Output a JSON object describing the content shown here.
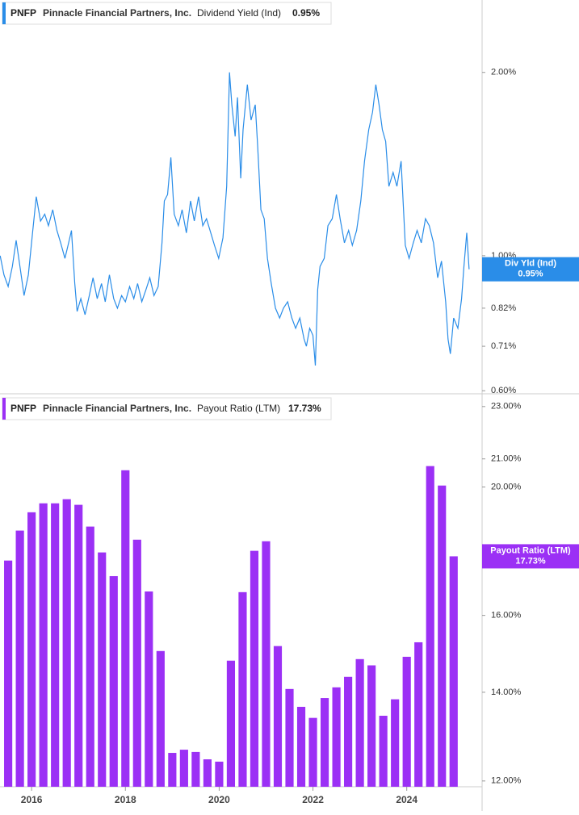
{
  "chart_data": [
    {
      "type": "line",
      "ticker": "PNFP",
      "company": "Pinnacle Financial Partners, Inc.",
      "metric": "Dividend Yield (Ind)",
      "last_label": "0.95%",
      "badge_label": "Div Yld (Ind)",
      "color": "#2a8de8",
      "log_scale": true,
      "xlim": [
        2015.326,
        2025.607
      ],
      "ylim": [
        0.595,
        2.63
      ],
      "yticks": [
        {
          "value": 2,
          "label": "2.00%"
        },
        {
          "value": 1,
          "label": "1.00%"
        },
        {
          "value": 0.82,
          "label": "0.82%"
        },
        {
          "value": 0.71,
          "label": "0.71%"
        },
        {
          "value": 0.6,
          "label": "0.60%"
        }
      ],
      "x": [
        2015.33,
        2015.41,
        2015.5,
        2015.59,
        2015.67,
        2015.76,
        2015.84,
        2015.93,
        2016.02,
        2016.1,
        2016.19,
        2016.28,
        2016.36,
        2016.45,
        2016.54,
        2016.62,
        2016.71,
        2016.79,
        2016.85,
        2016.92,
        2016.97,
        2017.05,
        2017.14,
        2017.23,
        2017.31,
        2017.4,
        2017.49,
        2017.57,
        2017.66,
        2017.75,
        2017.83,
        2017.92,
        2018.0,
        2018.09,
        2018.18,
        2018.26,
        2018.35,
        2018.44,
        2018.52,
        2018.61,
        2018.7,
        2018.78,
        2018.83,
        2018.9,
        2018.97,
        2019.04,
        2019.13,
        2019.21,
        2019.3,
        2019.39,
        2019.47,
        2019.56,
        2019.65,
        2019.73,
        2019.82,
        2019.9,
        2019.99,
        2020.08,
        2020.16,
        2020.22,
        2020.27,
        2020.34,
        2020.39,
        2020.46,
        2020.51,
        2020.6,
        2020.68,
        2020.77,
        2020.82,
        2020.89,
        2020.96,
        2021.03,
        2021.11,
        2021.2,
        2021.29,
        2021.37,
        2021.46,
        2021.55,
        2021.63,
        2021.72,
        2021.81,
        2021.86,
        2021.93,
        2022.0,
        2022.05,
        2022.1,
        2022.15,
        2022.24,
        2022.32,
        2022.41,
        2022.5,
        2022.58,
        2022.67,
        2022.76,
        2022.84,
        2022.93,
        2023.02,
        2023.1,
        2023.19,
        2023.27,
        2023.34,
        2023.41,
        2023.48,
        2023.55,
        2023.62,
        2023.71,
        2023.79,
        2023.88,
        2023.97,
        2024.05,
        2024.14,
        2024.22,
        2024.31,
        2024.4,
        2024.48,
        2024.57,
        2024.66,
        2024.74,
        2024.83,
        2024.88,
        2024.93,
        2025.0,
        2025.09,
        2025.17,
        2025.22,
        2025.28,
        2025.33
      ],
      "values": [
        1.0,
        0.93,
        0.89,
        0.96,
        1.06,
        0.95,
        0.86,
        0.93,
        1.09,
        1.25,
        1.14,
        1.17,
        1.12,
        1.19,
        1.1,
        1.05,
        0.99,
        1.05,
        1.1,
        0.9,
        0.81,
        0.85,
        0.8,
        0.86,
        0.92,
        0.85,
        0.9,
        0.84,
        0.93,
        0.85,
        0.82,
        0.86,
        0.84,
        0.89,
        0.85,
        0.9,
        0.84,
        0.88,
        0.92,
        0.86,
        0.89,
        1.05,
        1.23,
        1.26,
        1.45,
        1.17,
        1.12,
        1.19,
        1.09,
        1.23,
        1.14,
        1.25,
        1.12,
        1.15,
        1.09,
        1.04,
        0.99,
        1.07,
        1.3,
        2.0,
        1.77,
        1.57,
        1.82,
        1.34,
        1.61,
        1.91,
        1.67,
        1.77,
        1.52,
        1.19,
        1.15,
        0.99,
        0.9,
        0.82,
        0.79,
        0.82,
        0.84,
        0.79,
        0.76,
        0.79,
        0.73,
        0.71,
        0.76,
        0.74,
        0.66,
        0.88,
        0.96,
        0.99,
        1.12,
        1.15,
        1.26,
        1.15,
        1.05,
        1.1,
        1.04,
        1.1,
        1.23,
        1.43,
        1.61,
        1.72,
        1.91,
        1.77,
        1.61,
        1.54,
        1.3,
        1.37,
        1.3,
        1.43,
        1.04,
        0.99,
        1.05,
        1.1,
        1.05,
        1.15,
        1.12,
        1.05,
        0.92,
        0.98,
        0.84,
        0.73,
        0.69,
        0.79,
        0.76,
        0.85,
        0.96,
        1.09,
        0.95
      ]
    },
    {
      "type": "bar",
      "ticker": "PNFP",
      "company": "Pinnacle Financial Partners, Inc.",
      "metric": "Payout Ratio (LTM)",
      "last_label": "17.73%",
      "color": "#9b30f5",
      "log_scale": true,
      "xlim": [
        2015.326,
        2025.607
      ],
      "ylim": [
        11.88,
        23.45
      ],
      "xticks": [
        2016,
        2018,
        2020,
        2022,
        2024
      ],
      "yticks": [
        {
          "value": 23,
          "label": "23.00%"
        },
        {
          "value": 21,
          "label": "21.00%"
        },
        {
          "value": 20,
          "label": "20.00%"
        },
        {
          "value": 16,
          "label": "16.00%"
        },
        {
          "value": 14,
          "label": "14.00%"
        },
        {
          "value": 12,
          "label": "12.00%"
        }
      ],
      "x": [
        2015.5,
        2015.75,
        2016,
        2016.25,
        2016.5,
        2016.75,
        2017,
        2017.25,
        2017.5,
        2017.75,
        2018,
        2018.25,
        2018.5,
        2018.75,
        2019,
        2019.25,
        2019.5,
        2019.75,
        2020,
        2020.25,
        2020.5,
        2020.75,
        2021,
        2021.25,
        2021.5,
        2021.75,
        2022,
        2022.25,
        2022.5,
        2022.75,
        2023,
        2023.25,
        2023.5,
        2023.75,
        2024,
        2024.25,
        2024.5,
        2024.75,
        2025
      ],
      "values": [
        17.6,
        18.54,
        19.14,
        19.44,
        19.44,
        19.58,
        19.39,
        18.67,
        17.85,
        17.13,
        20.59,
        18.25,
        16.68,
        15.04,
        12.6,
        12.67,
        12.62,
        12.46,
        12.41,
        14.79,
        16.66,
        17.9,
        18.2,
        15.17,
        14.08,
        13.65,
        13.39,
        13.86,
        14.12,
        14.38,
        14.83,
        14.67,
        13.44,
        13.83,
        14.89,
        15.27,
        20.74,
        20.05,
        17.73
      ]
    }
  ]
}
